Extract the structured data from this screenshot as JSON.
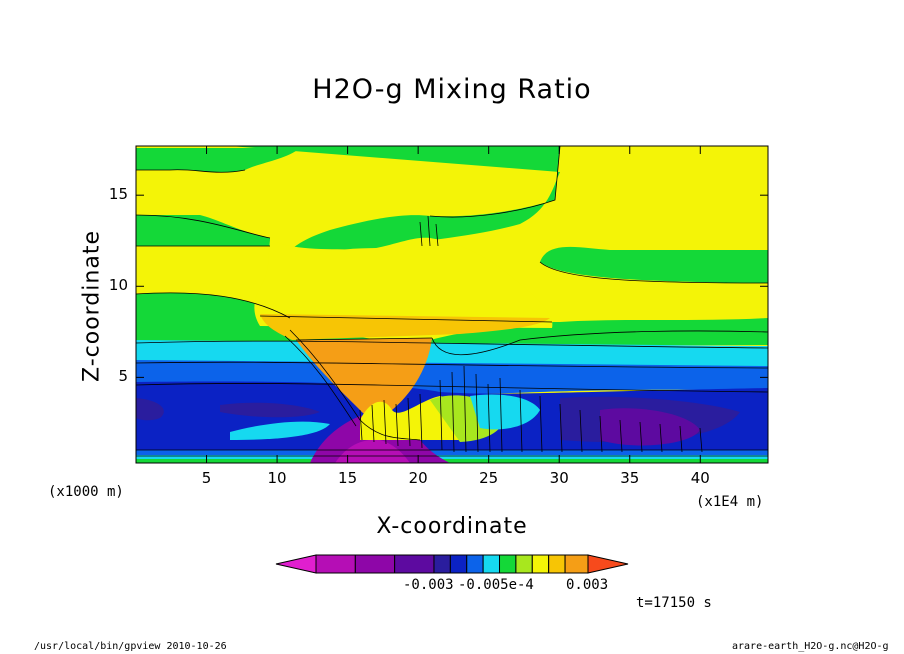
{
  "title": "H2O-g Mixing Ratio",
  "chart_data": {
    "type": "heatmap",
    "title": "H2O-g Mixing Ratio",
    "xlabel": "X-coordinate",
    "ylabel": "Z-coordinate",
    "x_unit_left": "(x1000 m)",
    "x_unit_right": "(x1E4 m)",
    "x_ticks": [
      5,
      10,
      15,
      20,
      25,
      30,
      35,
      40
    ],
    "y_ticks": [
      5,
      10,
      15
    ],
    "xlim": [
      0,
      44.8
    ],
    "ylim": [
      0.3,
      17.7
    ],
    "levels_from_low": [
      {
        "color": "#e01fcf"
      },
      {
        "color": "#b50eb5"
      },
      {
        "color": "#8e06a8"
      },
      {
        "color": "#5d0aa0"
      },
      {
        "color": "#2a1d9e"
      },
      {
        "color": "#0b22c4"
      },
      {
        "color": "#0c63ea"
      },
      {
        "color": "#16d9f0"
      },
      {
        "color": "#14d838"
      },
      {
        "color": "#a8e71e"
      },
      {
        "color": "#f4f407"
      },
      {
        "color": "#f7c505"
      },
      {
        "color": "#f59e16"
      },
      {
        "color": "#f74a1c"
      }
    ],
    "colorbar_labels": [
      "-0.003",
      "-0.005e-4",
      "0.003"
    ]
  },
  "time_label": "t=17150 s",
  "footer": {
    "left": "/usr/local/bin/gpview  2010-10-26",
    "right": "arare-earth_H2O-g.nc@H2O-g"
  }
}
